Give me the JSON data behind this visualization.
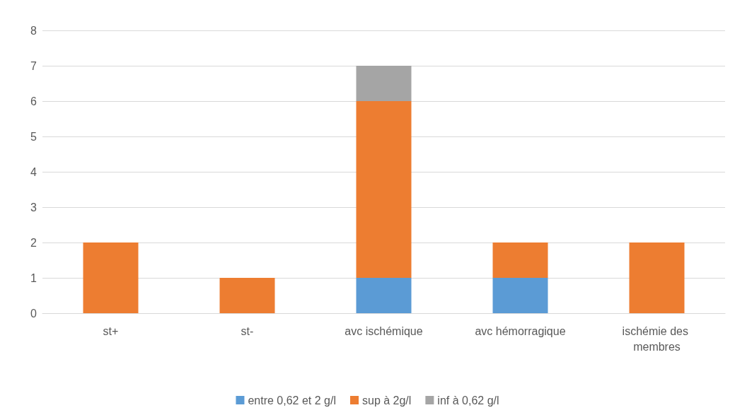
{
  "chart_data": {
    "type": "bar",
    "stacked": true,
    "categories": [
      "st+",
      "st-",
      "avc ischémique",
      "avc hémorragique",
      "ischémie des membres"
    ],
    "series": [
      {
        "name": "entre 0,62 et 2 g/l",
        "color": "#5b9bd5",
        "values": [
          0,
          0,
          1,
          1,
          0
        ]
      },
      {
        "name": "sup à 2g/l",
        "color": "#ed7d31",
        "values": [
          2,
          1,
          5,
          1,
          2
        ]
      },
      {
        "name": "inf à 0,62 g/l",
        "color": "#a5a5a5",
        "values": [
          0,
          0,
          1,
          0,
          0
        ]
      }
    ],
    "ylim": [
      0,
      8
    ],
    "yticks": [
      0,
      1,
      2,
      3,
      4,
      5,
      6,
      7,
      8
    ],
    "grid": "y",
    "legend": "bottom"
  }
}
